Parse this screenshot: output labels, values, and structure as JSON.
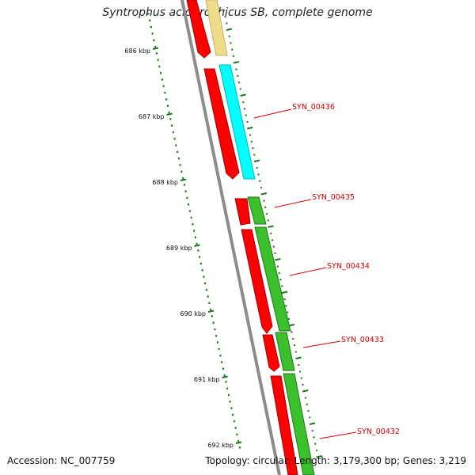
{
  "title": "Syntrophus aciditrophicus SB, complete genome",
  "footer": {
    "accession": "Accession: NC_007759",
    "summary": "Topology: circular; Length: 3,179,300 bp; Genes: 3,219"
  },
  "scale_ticks": [
    {
      "kbp": 686,
      "label": "686 kbp"
    },
    {
      "kbp": 687,
      "label": "687 kbp"
    },
    {
      "kbp": 688,
      "label": "688 kbp"
    },
    {
      "kbp": 689,
      "label": "689 kbp"
    },
    {
      "kbp": 690,
      "label": "690 kbp"
    },
    {
      "kbp": 691,
      "label": "691 kbp"
    },
    {
      "kbp": 692,
      "label": "692 kbp"
    }
  ],
  "gene_labels": [
    {
      "name": "SYN_00436"
    },
    {
      "name": "SYN_00435"
    },
    {
      "name": "SYN_00434"
    },
    {
      "name": "SYN_00433"
    },
    {
      "name": "SYN_00432"
    }
  ],
  "colors": {
    "backbone": "#8c8c8c",
    "cds": "#ff0000",
    "gene_cyan": "#00ffff",
    "gene_green": "#3cbf2c",
    "gene_tan": "#eedc8a",
    "tick": "#1a7a1a",
    "label": "#d40000"
  }
}
